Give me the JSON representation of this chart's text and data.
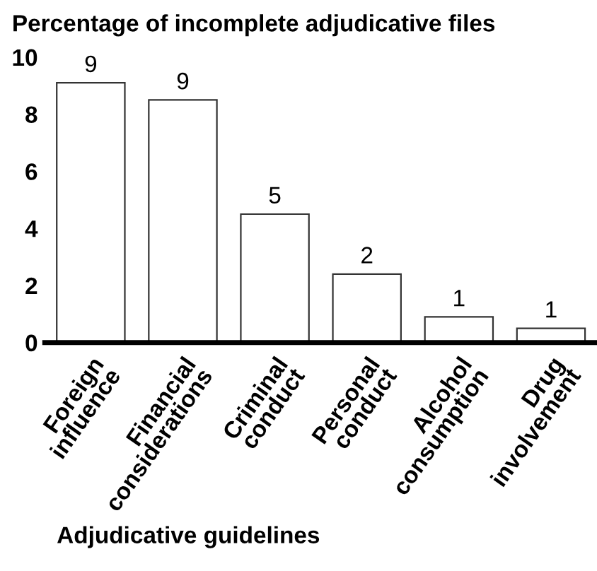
{
  "chart_data": {
    "type": "bar",
    "title": "Percentage of incomplete adjudicative files",
    "xlabel": "Adjudicative guidelines",
    "categories": [
      "Foreign\ninfluence",
      "Financial\nconsiderations",
      "Criminal\nconduct",
      "Personal\nconduct",
      "Alcohol\nconsumption",
      "Drug\ninvolvement"
    ],
    "values": [
      9.1,
      8.5,
      4.5,
      2.4,
      0.9,
      0.5
    ],
    "value_labels": [
      "9",
      "9",
      "5",
      "2",
      "1",
      "1"
    ],
    "color": "#ffffff",
    "ylim": [
      0,
      10
    ],
    "yticks": [
      0,
      2,
      4,
      6,
      8,
      10
    ],
    "grid": false,
    "legend": false
  }
}
